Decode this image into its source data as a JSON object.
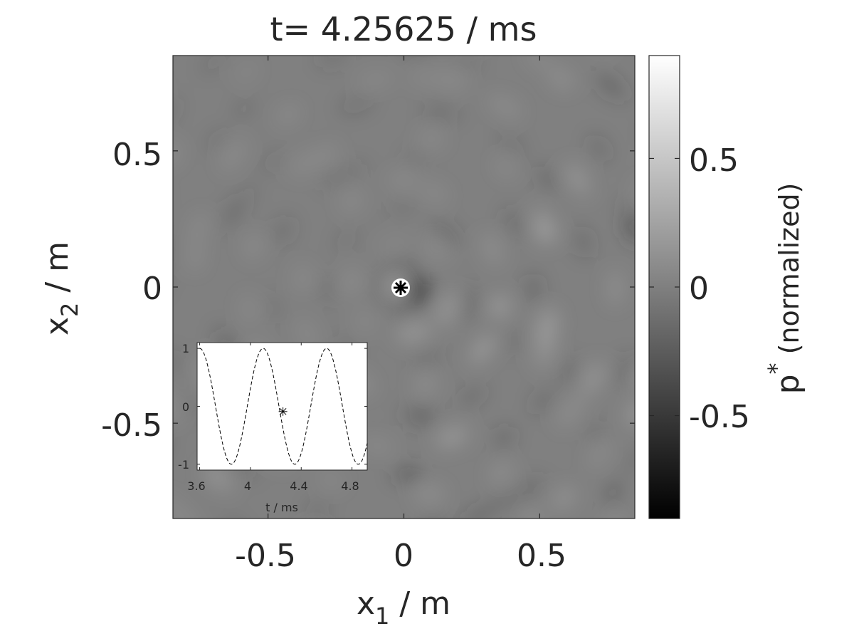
{
  "chart_data": [
    {
      "type": "heatmap",
      "title": "t= 4.25625 / ms",
      "xlabel": {
        "base": "x",
        "sub": "1",
        "rest": " / m"
      },
      "ylabel": {
        "base": "x",
        "sub": "2",
        "rest": " / m"
      },
      "xlim": [
        -0.85,
        0.85
      ],
      "ylim": [
        -0.85,
        0.85
      ],
      "xticks": [
        -0.5,
        0,
        0.5
      ],
      "xtick_labels": [
        "-0.5",
        "0",
        "0.5"
      ],
      "yticks": [
        -0.5,
        0,
        0.5
      ],
      "ytick_labels": [
        "-0.5",
        "0",
        "0.5"
      ],
      "source_marker": {
        "x": -0.01,
        "y": 0.0,
        "symbol": "*"
      },
      "colormap": "gray",
      "colorbar": {
        "label": {
          "base": "p",
          "sup": "*",
          "rest": " (normalized)"
        },
        "clim": [
          -0.9,
          0.9
        ],
        "ticks": [
          -0.5,
          0,
          0.5
        ],
        "tick_labels": [
          "-0.5",
          "0",
          "0.5"
        ]
      },
      "field_background": "#808080"
    },
    {
      "type": "line",
      "placement": "bottom-left inset",
      "xlabel": "t / ms",
      "ylabel": "",
      "xlim": [
        3.58,
        4.92
      ],
      "ylim": [
        -1.1,
        1.1
      ],
      "xticks": [
        3.6,
        4,
        4.4,
        4.8
      ],
      "xtick_labels": [
        "3.6",
        "4",
        "4.4",
        "4.8"
      ],
      "yticks": [
        -1,
        0,
        1
      ],
      "ytick_labels": [
        "-1",
        "0",
        "1"
      ],
      "series": [
        {
          "function": "cos",
          "frequency_khz": 2.0,
          "t0_ms": 3.6,
          "t_start_ms": 3.6,
          "t_end_ms": 4.92,
          "style": "dashed"
        }
      ],
      "marker": {
        "x": 4.25625,
        "y": -0.09,
        "symbol": "*"
      }
    }
  ]
}
